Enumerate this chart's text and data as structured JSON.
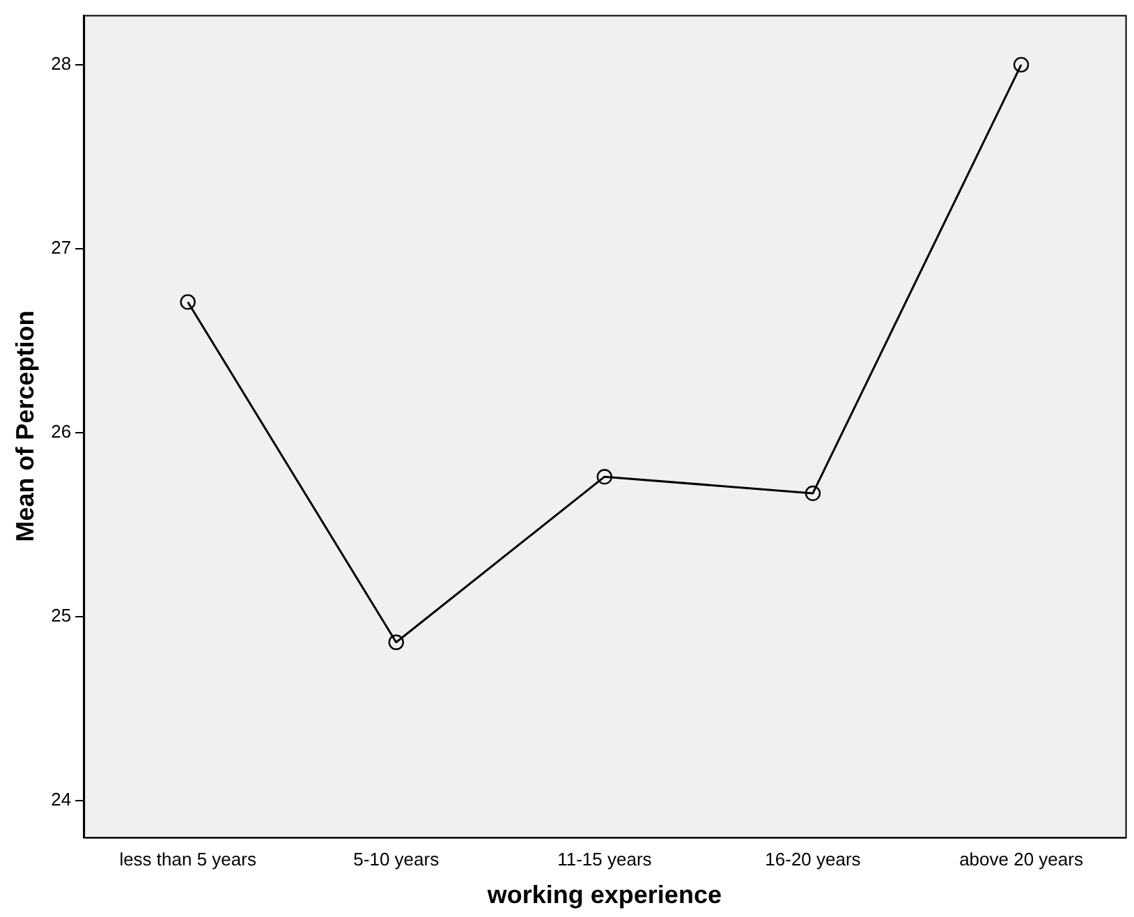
{
  "chart_data": {
    "type": "line",
    "xlabel": "working experience",
    "ylabel": "Mean of Perception",
    "categories": [
      "less than 5 years",
      "5-10 years",
      "11-15 years",
      "16-20 years",
      "above 20 years"
    ],
    "series": [
      {
        "color": "#000000",
        "values": [
          26.71,
          24.86,
          25.76,
          25.67,
          28.0
        ]
      }
    ],
    "ylim": [
      23.8,
      28.27
    ],
    "yticks": [
      24,
      25,
      26,
      27,
      28
    ],
    "grid": false,
    "legend": false,
    "marker": "circle",
    "line_style": "solid"
  }
}
